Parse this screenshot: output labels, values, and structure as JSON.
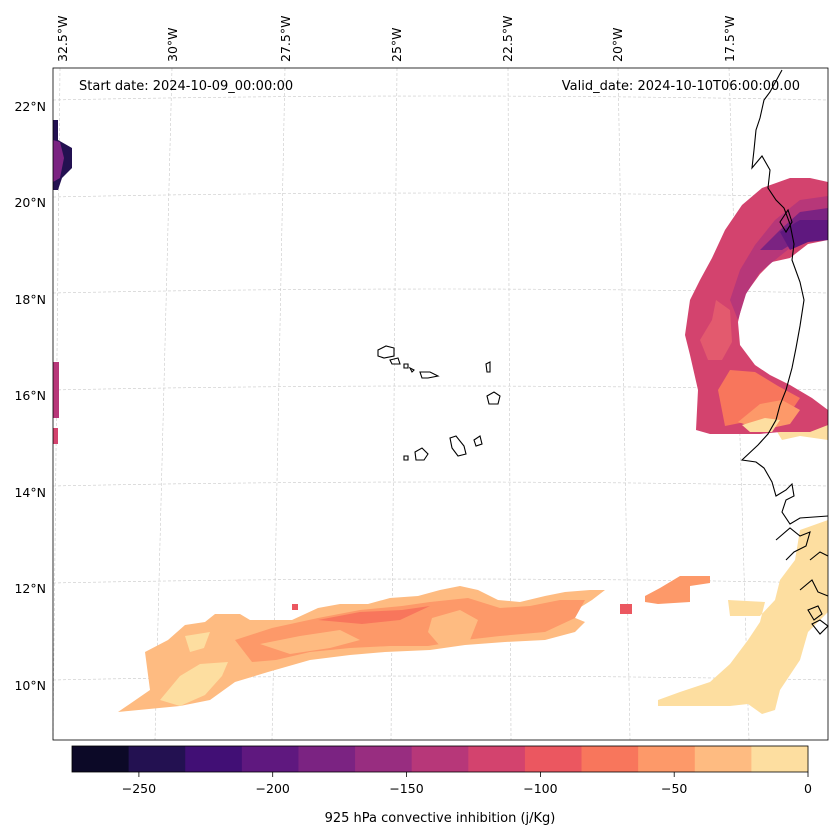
{
  "map": {
    "start_date": "Start date: 2024-10-09_00:00:00",
    "valid_date": "Valid_date: 2024-10-10T06:00:00.00",
    "lon_labels": [
      "32.5°W",
      "30°W",
      "27.5°W",
      "25°W",
      "22.5°W",
      "20°W",
      "17.5°W"
    ],
    "lat_labels": [
      "22°N",
      "20°N",
      "18°N",
      "16°N",
      "14°N",
      "12°N",
      "10°N"
    ]
  },
  "colorbar": {
    "label": "925 hPa convective inhibition (j/Kg)",
    "tick_labels": [
      "−250",
      "−200",
      "−150",
      "−100",
      "−50",
      "0"
    ],
    "bin_colors": [
      "#0c0927",
      "#231151",
      "#410f75",
      "#5f187f",
      "#7b2382",
      "#982d80",
      "#b73779",
      "#d3436e",
      "#eb5760",
      "#f8765c",
      "#fd9969",
      "#febb81",
      "#fddea0"
    ]
  },
  "colors": {
    "gridline": "#c8c8c8",
    "coastline": "#000000"
  }
}
